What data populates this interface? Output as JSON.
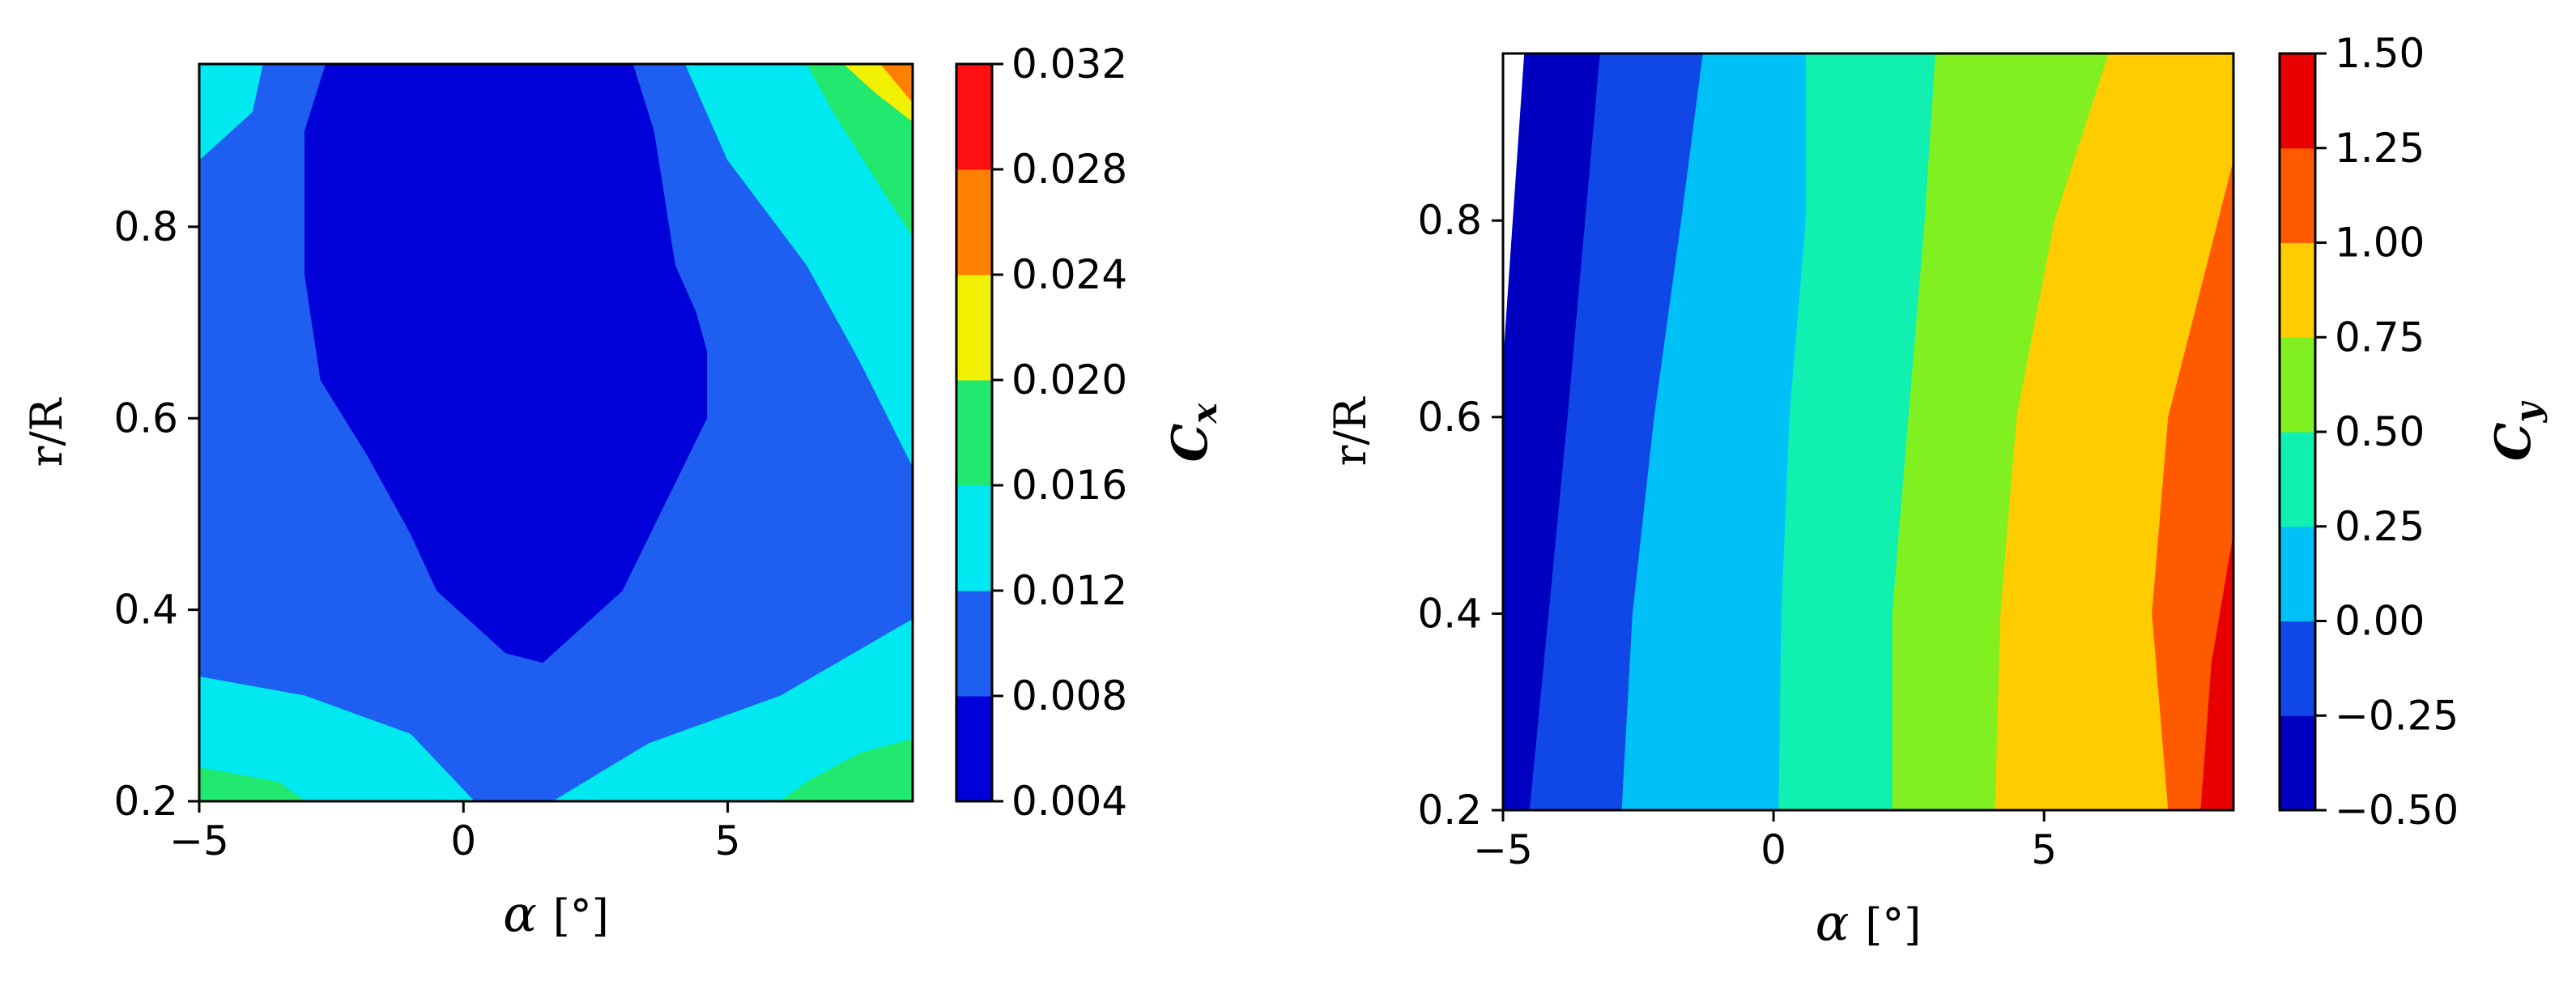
{
  "chart_data": [
    {
      "type": "contour",
      "xlabel_symbol": "α",
      "xlabel_unit": "[°]",
      "ylabel": "r/R",
      "xlim": [
        -5,
        8.5
      ],
      "ylim": [
        0.2,
        0.97
      ],
      "xticks": [
        -5,
        0,
        5
      ],
      "xtick_labels": [
        "−5",
        "0",
        "5"
      ],
      "yticks": [
        0.2,
        0.4,
        0.6,
        0.8
      ],
      "ytick_labels": [
        "0.2",
        "0.4",
        "0.6",
        "0.8"
      ],
      "colorbar": {
        "label_main": "C",
        "label_sub": "x",
        "levels": [
          0.004,
          0.008,
          0.012,
          0.016,
          0.02,
          0.024,
          0.028,
          0.032
        ],
        "tick_labels": [
          "0.004",
          "0.008",
          "0.012",
          "0.016",
          "0.020",
          "0.024",
          "0.028",
          "0.032"
        ],
        "colors": [
          "#0000d8",
          "#1e5ef0",
          "#00e8f0",
          "#21e86e",
          "#f0f000",
          "#ff7f00",
          "#ff1010"
        ]
      },
      "regions": [
        {
          "level_index": 1,
          "polygon": [
            [
              -5,
              0.2
            ],
            [
              8.5,
              0.2
            ],
            [
              8.5,
              0.97
            ],
            [
              -5,
              0.97
            ]
          ]
        },
        {
          "level_index": 2,
          "polygon": [
            [
              -5,
              0.33
            ],
            [
              -3,
              0.31
            ],
            [
              -1,
              0.27
            ],
            [
              0.2,
              0.2
            ],
            [
              1.7,
              0.2
            ],
            [
              3.5,
              0.26
            ],
            [
              6,
              0.31
            ],
            [
              8.5,
              0.39
            ],
            [
              8.5,
              0.2
            ],
            [
              -5,
              0.2
            ]
          ]
        },
        {
          "level_index": 2,
          "polygon": [
            [
              -5,
              0.87
            ],
            [
              -4,
              0.92
            ],
            [
              -3.8,
              0.97
            ],
            [
              -5,
              0.97
            ]
          ]
        },
        {
          "level_index": 2,
          "polygon": [
            [
              4.2,
              0.97
            ],
            [
              5,
              0.87
            ],
            [
              6.5,
              0.76
            ],
            [
              7.5,
              0.66
            ],
            [
              8.5,
              0.55
            ],
            [
              8.5,
              0.97
            ]
          ]
        },
        {
          "level_index": 3,
          "polygon": [
            [
              -5,
              0.2
            ],
            [
              -5,
              0.235
            ],
            [
              -3.5,
              0.22
            ],
            [
              -3,
              0.2
            ]
          ]
        },
        {
          "level_index": 3,
          "polygon": [
            [
              6,
              0.2
            ],
            [
              8.5,
              0.2
            ],
            [
              8.5,
              0.265
            ],
            [
              7.5,
              0.25
            ],
            [
              6.5,
              0.22
            ]
          ]
        },
        {
          "level_index": 3,
          "polygon": [
            [
              6.5,
              0.97
            ],
            [
              7,
              0.92
            ],
            [
              7.8,
              0.85
            ],
            [
              8.5,
              0.79
            ],
            [
              8.5,
              0.97
            ]
          ]
        },
        {
          "level_index": 4,
          "polygon": [
            [
              7.2,
              0.97
            ],
            [
              7.8,
              0.94
            ],
            [
              8.5,
              0.91
            ],
            [
              8.5,
              0.97
            ]
          ]
        },
        {
          "level_index": 5,
          "polygon": [
            [
              7.9,
              0.97
            ],
            [
              8.5,
              0.93
            ],
            [
              8.5,
              0.97
            ]
          ]
        },
        {
          "level_index": 0,
          "polygon": [
            [
              -2.6,
              0.97
            ],
            [
              -3,
              0.9
            ],
            [
              -3,
              0.75
            ],
            [
              -2.7,
              0.64
            ],
            [
              -1.8,
              0.56
            ],
            [
              -1,
              0.48
            ],
            [
              -0.5,
              0.42
            ],
            [
              0.8,
              0.355
            ],
            [
              1.5,
              0.345
            ],
            [
              3,
              0.42
            ],
            [
              4.6,
              0.6
            ],
            [
              4.6,
              0.67
            ],
            [
              4.4,
              0.71
            ],
            [
              4,
              0.76
            ],
            [
              3.6,
              0.9
            ],
            [
              3.2,
              0.97
            ]
          ]
        }
      ]
    },
    {
      "type": "contour",
      "xlabel_symbol": "α",
      "xlabel_unit": "[°]",
      "ylabel": "r/R",
      "xlim": [
        -5,
        8.5
      ],
      "ylim": [
        0.2,
        0.97
      ],
      "xticks": [
        -5,
        0,
        5
      ],
      "xtick_labels": [
        "−5",
        "0",
        "5"
      ],
      "yticks": [
        0.2,
        0.4,
        0.6,
        0.8
      ],
      "ytick_labels": [
        "0.2",
        "0.4",
        "0.6",
        "0.8"
      ],
      "colorbar": {
        "label_main": "C",
        "label_sub": "y",
        "levels": [
          -0.5,
          -0.25,
          0.0,
          0.25,
          0.5,
          0.75,
          1.0,
          1.25,
          1.5
        ],
        "tick_labels": [
          "−0.50",
          "−0.25",
          "0.00",
          "0.25",
          "0.50",
          "0.75",
          "1.00",
          "1.25",
          "1.50"
        ],
        "colors": [
          "#0000c0",
          "#1048e8",
          "#00c0f8",
          "#10f0b0",
          "#80f020",
          "#ffcc00",
          "#ff5a00",
          "#e80000"
        ]
      },
      "bands": [
        [
          [
            -5,
            0.2
          ],
          [
            -5,
            0.65
          ],
          [
            -4.6,
            0.97
          ],
          [
            -3.2,
            0.97
          ],
          [
            -3.8,
            0.6
          ],
          [
            -4.5,
            0.2
          ]
        ],
        [
          [
            -4.5,
            0.2
          ],
          [
            -3.8,
            0.6
          ],
          [
            -3.2,
            0.97
          ],
          [
            -1.3,
            0.97
          ],
          [
            -1.7,
            0.8
          ],
          [
            -2.2,
            0.6
          ],
          [
            -2.6,
            0.4
          ],
          [
            -2.8,
            0.2
          ]
        ],
        [
          [
            -2.8,
            0.2
          ],
          [
            -2.6,
            0.4
          ],
          [
            -2.2,
            0.6
          ],
          [
            -1.7,
            0.8
          ],
          [
            -1.3,
            0.97
          ],
          [
            0.6,
            0.97
          ],
          [
            0.6,
            0.8
          ],
          [
            0.3,
            0.6
          ],
          [
            0.15,
            0.4
          ],
          [
            0.1,
            0.2
          ]
        ],
        [
          [
            0.1,
            0.2
          ],
          [
            0.15,
            0.4
          ],
          [
            0.3,
            0.6
          ],
          [
            0.6,
            0.8
          ],
          [
            0.6,
            0.97
          ],
          [
            3,
            0.97
          ],
          [
            2.8,
            0.8
          ],
          [
            2.5,
            0.6
          ],
          [
            2.2,
            0.4
          ],
          [
            2.2,
            0.2
          ]
        ],
        [
          [
            2.2,
            0.2
          ],
          [
            2.2,
            0.4
          ],
          [
            2.5,
            0.6
          ],
          [
            2.8,
            0.8
          ],
          [
            3,
            0.97
          ],
          [
            6.2,
            0.97
          ],
          [
            5.2,
            0.8
          ],
          [
            4.5,
            0.6
          ],
          [
            4.2,
            0.4
          ],
          [
            4.1,
            0.2
          ]
        ],
        [
          [
            4.1,
            0.2
          ],
          [
            4.2,
            0.4
          ],
          [
            4.5,
            0.6
          ],
          [
            5.2,
            0.8
          ],
          [
            6.2,
            0.97
          ],
          [
            8.5,
            0.97
          ],
          [
            8.5,
            0.86
          ],
          [
            7.3,
            0.6
          ],
          [
            7,
            0.4
          ],
          [
            7.3,
            0.2
          ]
        ],
        [
          [
            7.3,
            0.2
          ],
          [
            7,
            0.4
          ],
          [
            7.3,
            0.6
          ],
          [
            8.5,
            0.86
          ],
          [
            8.5,
            0.48
          ],
          [
            8.1,
            0.35
          ],
          [
            7.9,
            0.2
          ]
        ],
        [
          [
            7.9,
            0.2
          ],
          [
            8.1,
            0.35
          ],
          [
            8.5,
            0.48
          ],
          [
            8.5,
            0.2
          ]
        ]
      ]
    }
  ]
}
